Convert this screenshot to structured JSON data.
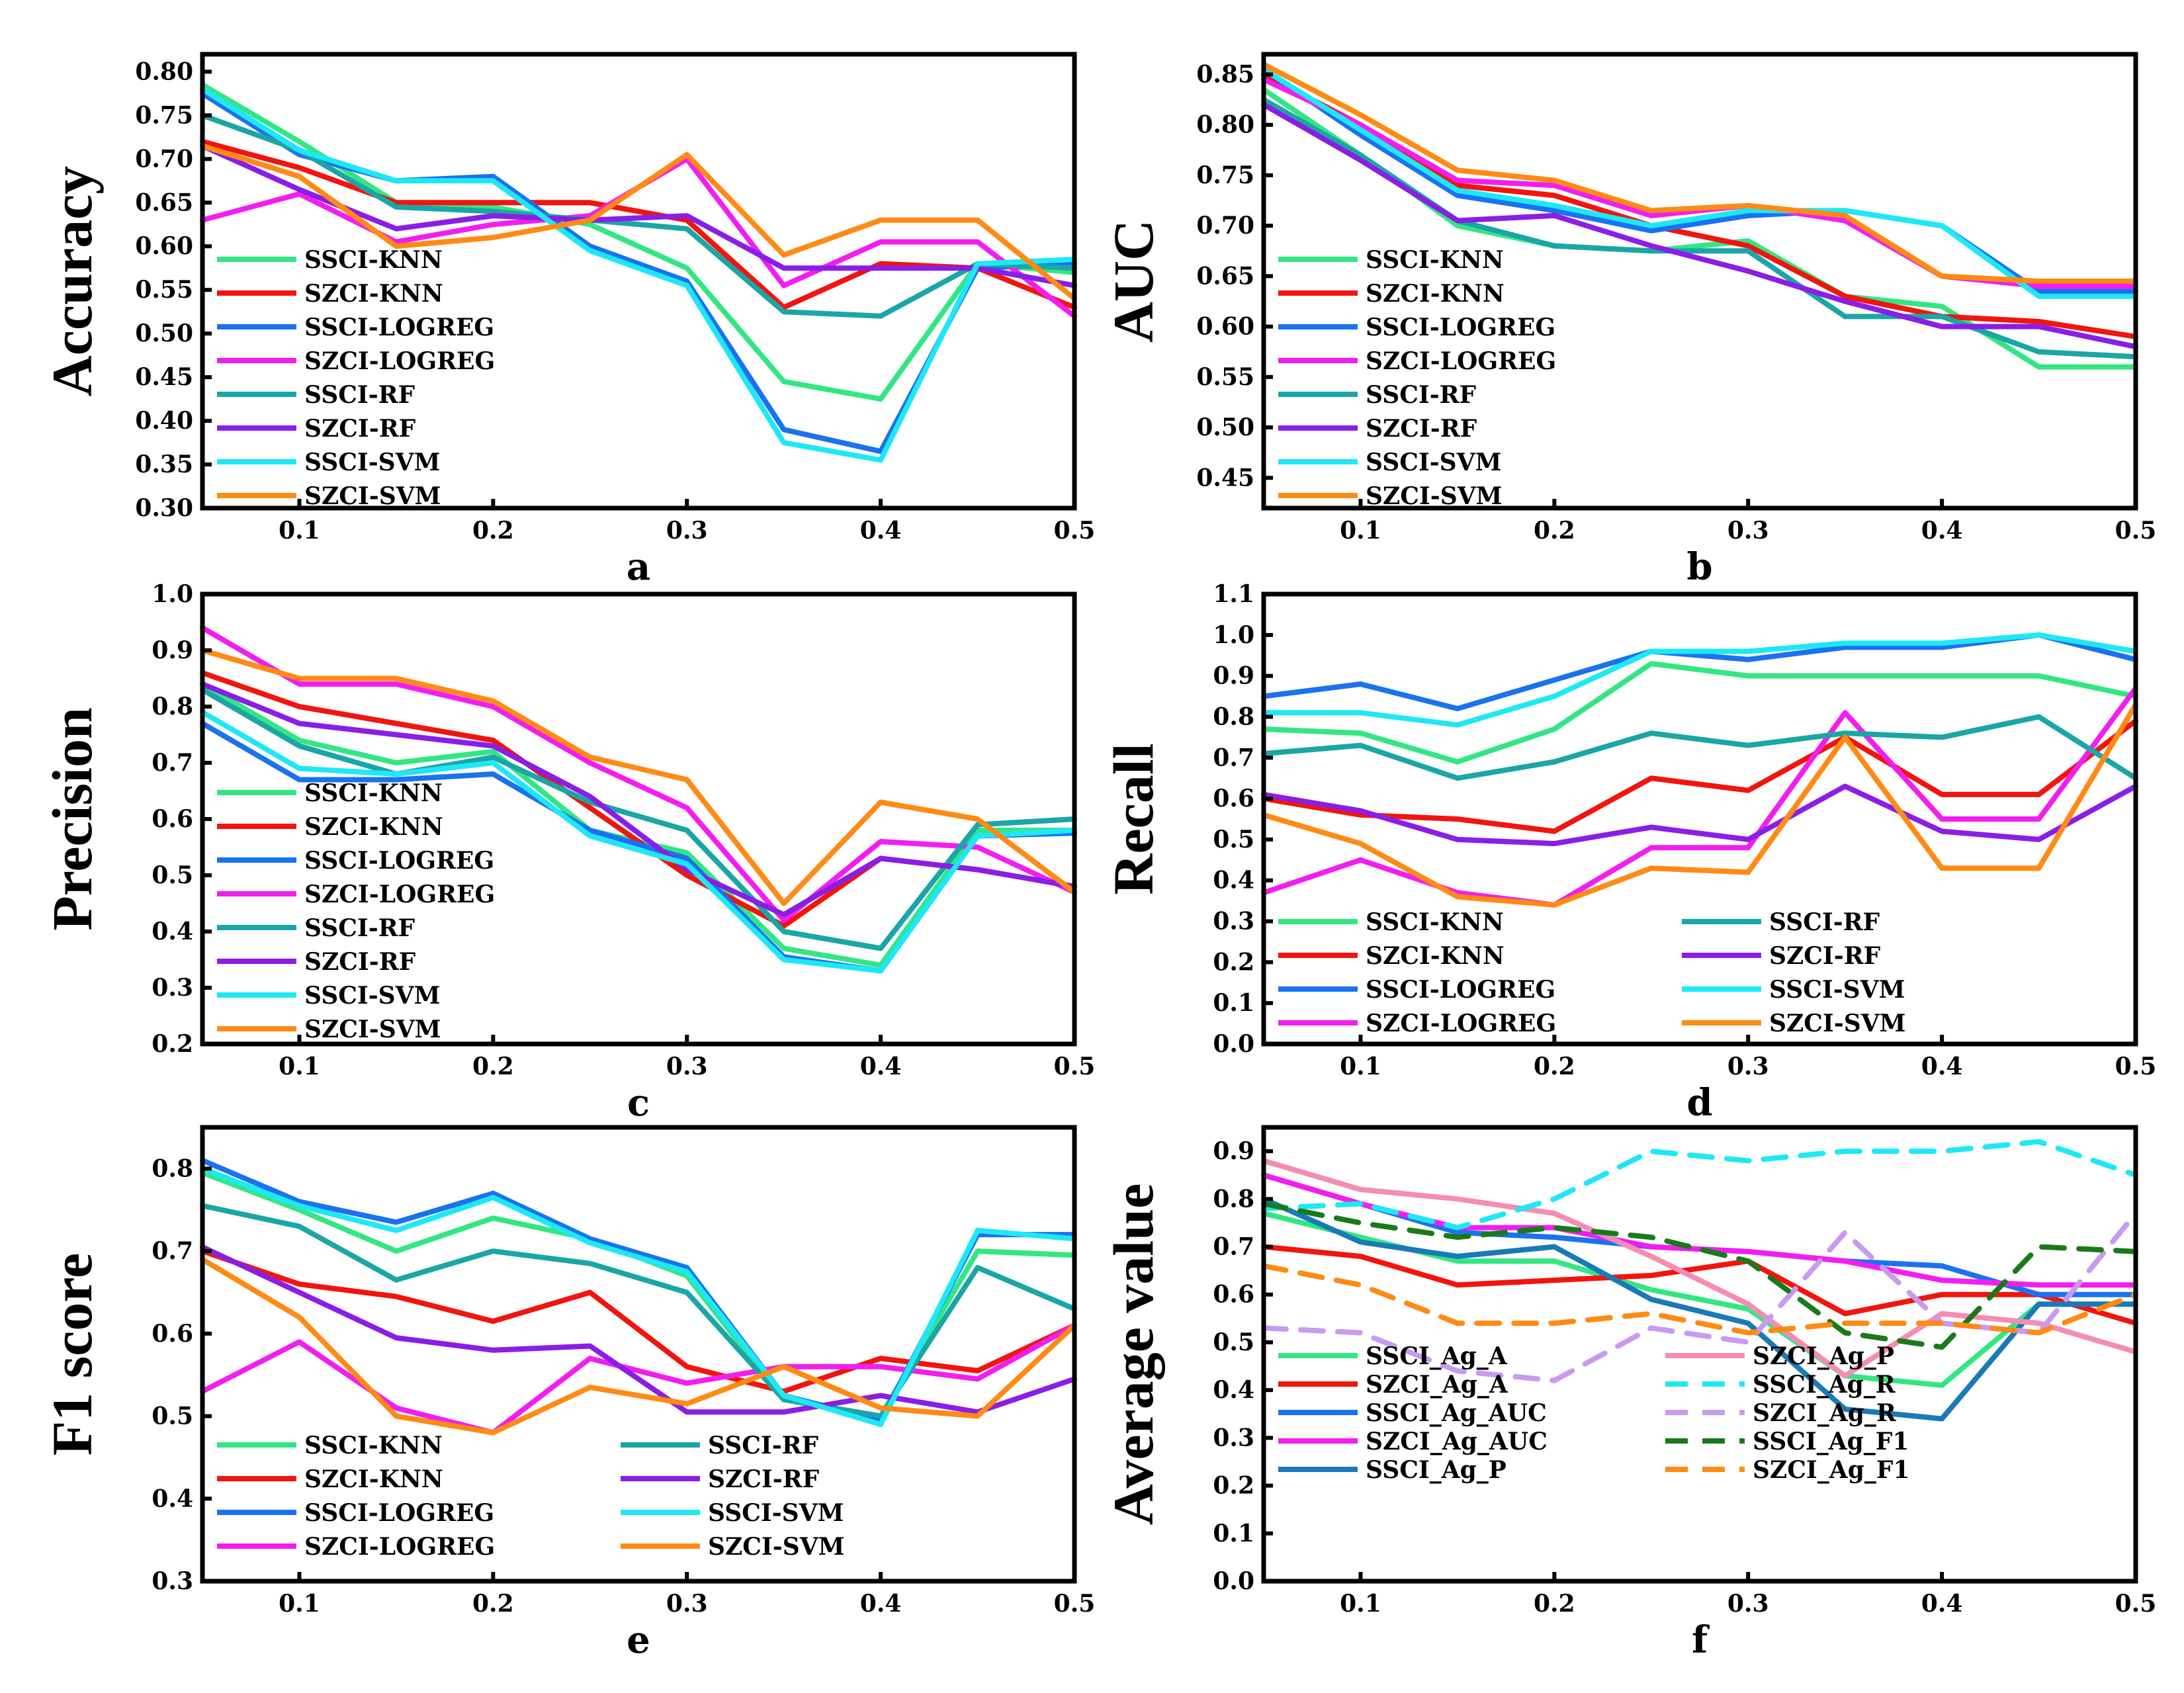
{
  "colors": {
    "SSCI-KNN": "#33e683",
    "SZCI-KNN": "#f2140f",
    "SSCI-LOGREG": "#1a72f0",
    "SZCI-LOGREG": "#f21ef0",
    "SSCI-RF": "#1aa6a6",
    "SZCI-RF": "#8a1ee6",
    "SSCI-SVM": "#1ee8f5",
    "SZCI-SVM": "#ff8a14",
    "SSCI_Ag_A": "#33e683",
    "SZCI_Ag_A": "#f2140f",
    "SSCI_Ag_AUC": "#1a72f0",
    "SZCI_Ag_AUC": "#f21ef0",
    "SSCI_Ag_P": "#1a7ab8",
    "SZCI_Ag_P": "#f58cb4",
    "SSCI_Ag_R": "#1ee8f5",
    "SZCI_Ag_R": "#c89af0",
    "SSCI_Ag_F1": "#1a7a1a",
    "SZCI_Ag_F1": "#ff8a14"
  },
  "chart_data": [
    {
      "type": "line",
      "panel_letter": "a",
      "ylabel": "Accuracy",
      "xlabel": "",
      "xlim": [
        0.05,
        0.5
      ],
      "ylim": [
        0.3,
        0.82
      ],
      "xticks": [
        0.1,
        0.2,
        0.3,
        0.4,
        0.5
      ],
      "xtick_labels": [
        "0.1",
        "0.2",
        "0.3",
        "0.4",
        "0.5"
      ],
      "yticks": [
        0.3,
        0.35,
        0.4,
        0.45,
        0.5,
        0.55,
        0.6,
        0.65,
        0.7,
        0.75,
        0.8
      ],
      "ytick_labels": [
        "0.30",
        "0.35",
        "0.40",
        "0.45",
        "0.50",
        "0.55",
        "0.60",
        "0.65",
        "0.70",
        "0.75",
        "0.80"
      ],
      "x": [
        0.05,
        0.1,
        0.15,
        0.2,
        0.25,
        0.3,
        0.35,
        0.4,
        0.45,
        0.5
      ],
      "legend_layout": "one-column",
      "series": [
        {
          "name": "SSCI-KNN",
          "values": [
            0.785,
            0.72,
            0.65,
            0.645,
            0.625,
            0.575,
            0.445,
            0.425,
            0.58,
            0.57
          ]
        },
        {
          "name": "SZCI-KNN",
          "values": [
            0.72,
            0.69,
            0.65,
            0.65,
            0.65,
            0.63,
            0.53,
            0.58,
            0.575,
            0.53
          ]
        },
        {
          "name": "SSCI-LOGREG",
          "values": [
            0.775,
            0.705,
            0.675,
            0.68,
            0.6,
            0.56,
            0.39,
            0.365,
            0.575,
            0.58
          ]
        },
        {
          "name": "SZCI-LOGREG",
          "values": [
            0.63,
            0.66,
            0.605,
            0.625,
            0.635,
            0.7,
            0.555,
            0.605,
            0.605,
            0.52
          ]
        },
        {
          "name": "SSCI-RF",
          "values": [
            0.75,
            0.71,
            0.645,
            0.64,
            0.63,
            0.62,
            0.525,
            0.52,
            0.58,
            0.575
          ]
        },
        {
          "name": "SZCI-RF",
          "values": [
            0.715,
            0.665,
            0.62,
            0.635,
            0.63,
            0.635,
            0.575,
            0.575,
            0.575,
            0.555
          ]
        },
        {
          "name": "SSCI-SVM",
          "values": [
            0.78,
            0.71,
            0.675,
            0.675,
            0.595,
            0.555,
            0.375,
            0.355,
            0.58,
            0.585
          ]
        },
        {
          "name": "SZCI-SVM",
          "values": [
            0.715,
            0.68,
            0.6,
            0.61,
            0.63,
            0.705,
            0.59,
            0.63,
            0.63,
            0.54
          ]
        }
      ]
    },
    {
      "type": "line",
      "panel_letter": "b",
      "ylabel": "AUC",
      "xlabel": "",
      "xlim": [
        0.05,
        0.5
      ],
      "ylim": [
        0.42,
        0.87
      ],
      "xticks": [
        0.1,
        0.2,
        0.3,
        0.4,
        0.5
      ],
      "xtick_labels": [
        "0.1",
        "0.2",
        "0.3",
        "0.4",
        "0.5"
      ],
      "yticks": [
        0.45,
        0.5,
        0.55,
        0.6,
        0.65,
        0.7,
        0.75,
        0.8,
        0.85
      ],
      "ytick_labels": [
        "0.45",
        "0.50",
        "0.55",
        "0.60",
        "0.65",
        "0.70",
        "0.75",
        "0.80",
        "0.85"
      ],
      "x": [
        0.05,
        0.1,
        0.15,
        0.2,
        0.25,
        0.3,
        0.35,
        0.4,
        0.45,
        0.5
      ],
      "legend_layout": "one-column",
      "series": [
        {
          "name": "SSCI-KNN",
          "values": [
            0.835,
            0.77,
            0.7,
            0.68,
            0.675,
            0.685,
            0.63,
            0.62,
            0.56,
            0.56
          ]
        },
        {
          "name": "SZCI-KNN",
          "values": [
            0.85,
            0.8,
            0.74,
            0.73,
            0.7,
            0.68,
            0.63,
            0.61,
            0.605,
            0.59
          ]
        },
        {
          "name": "SSCI-LOGREG",
          "values": [
            0.855,
            0.79,
            0.73,
            0.715,
            0.695,
            0.71,
            0.715,
            0.7,
            0.635,
            0.635
          ]
        },
        {
          "name": "SZCI-LOGREG",
          "values": [
            0.845,
            0.8,
            0.745,
            0.74,
            0.71,
            0.72,
            0.705,
            0.65,
            0.64,
            0.64
          ]
        },
        {
          "name": "SSCI-RF",
          "values": [
            0.825,
            0.77,
            0.705,
            0.68,
            0.675,
            0.675,
            0.61,
            0.61,
            0.575,
            0.57
          ]
        },
        {
          "name": "SZCI-RF",
          "values": [
            0.82,
            0.765,
            0.705,
            0.71,
            0.68,
            0.655,
            0.625,
            0.6,
            0.6,
            0.58
          ]
        },
        {
          "name": "SSCI-SVM",
          "values": [
            0.855,
            0.795,
            0.735,
            0.72,
            0.7,
            0.715,
            0.715,
            0.7,
            0.63,
            0.63
          ]
        },
        {
          "name": "SZCI-SVM",
          "values": [
            0.86,
            0.81,
            0.755,
            0.745,
            0.715,
            0.72,
            0.71,
            0.65,
            0.645,
            0.645
          ]
        }
      ]
    },
    {
      "type": "line",
      "panel_letter": "c",
      "ylabel": "Precision",
      "xlabel": "",
      "xlim": [
        0.05,
        0.5
      ],
      "ylim": [
        0.2,
        1.0
      ],
      "xticks": [
        0.1,
        0.2,
        0.3,
        0.4,
        0.5
      ],
      "xtick_labels": [
        "0.1",
        "0.2",
        "0.3",
        "0.4",
        "0.5"
      ],
      "yticks": [
        0.2,
        0.3,
        0.4,
        0.5,
        0.6,
        0.7,
        0.8,
        0.9,
        1.0
      ],
      "ytick_labels": [
        "0.2",
        "0.3",
        "0.4",
        "0.5",
        "0.6",
        "0.7",
        "0.8",
        "0.9",
        "1.0"
      ],
      "x": [
        0.05,
        0.1,
        0.15,
        0.2,
        0.25,
        0.3,
        0.35,
        0.4,
        0.45,
        0.5
      ],
      "legend_layout": "one-column",
      "series": [
        {
          "name": "SSCI-KNN",
          "values": [
            0.84,
            0.74,
            0.7,
            0.72,
            0.58,
            0.54,
            0.37,
            0.34,
            0.58,
            0.58
          ]
        },
        {
          "name": "SZCI-KNN",
          "values": [
            0.86,
            0.8,
            0.77,
            0.74,
            0.62,
            0.5,
            0.41,
            0.53,
            0.51,
            0.48
          ]
        },
        {
          "name": "SSCI-LOGREG",
          "values": [
            0.77,
            0.67,
            0.67,
            0.68,
            0.58,
            0.53,
            0.355,
            0.33,
            0.57,
            0.575
          ]
        },
        {
          "name": "SZCI-LOGREG",
          "values": [
            0.94,
            0.84,
            0.84,
            0.8,
            0.7,
            0.62,
            0.42,
            0.56,
            0.55,
            0.47
          ]
        },
        {
          "name": "SSCI-RF",
          "values": [
            0.83,
            0.73,
            0.68,
            0.71,
            0.63,
            0.58,
            0.4,
            0.37,
            0.59,
            0.6
          ]
        },
        {
          "name": "SZCI-RF",
          "values": [
            0.84,
            0.77,
            0.75,
            0.73,
            0.64,
            0.51,
            0.43,
            0.53,
            0.51,
            0.48
          ]
        },
        {
          "name": "SSCI-SVM",
          "values": [
            0.79,
            0.69,
            0.68,
            0.7,
            0.57,
            0.52,
            0.35,
            0.33,
            0.57,
            0.58
          ]
        },
        {
          "name": "SZCI-SVM",
          "values": [
            0.9,
            0.85,
            0.85,
            0.81,
            0.71,
            0.67,
            0.45,
            0.63,
            0.6,
            0.47
          ]
        }
      ]
    },
    {
      "type": "line",
      "panel_letter": "d",
      "ylabel": "Recall",
      "xlabel": "",
      "xlim": [
        0.05,
        0.5
      ],
      "ylim": [
        0.0,
        1.1
      ],
      "xticks": [
        0.1,
        0.2,
        0.3,
        0.4,
        0.5
      ],
      "xtick_labels": [
        "0.1",
        "0.2",
        "0.3",
        "0.4",
        "0.5"
      ],
      "yticks": [
        0.0,
        0.1,
        0.2,
        0.3,
        0.4,
        0.5,
        0.6,
        0.7,
        0.8,
        0.9,
        1.0,
        1.1
      ],
      "ytick_labels": [
        "0.0",
        "0.1",
        "0.2",
        "0.3",
        "0.4",
        "0.5",
        "0.6",
        "0.7",
        "0.8",
        "0.9",
        "1.0",
        "1.1"
      ],
      "x": [
        0.05,
        0.1,
        0.15,
        0.2,
        0.25,
        0.3,
        0.35,
        0.4,
        0.45,
        0.5
      ],
      "legend_layout": "two-column",
      "series": [
        {
          "name": "SSCI-KNN",
          "values": [
            0.77,
            0.76,
            0.69,
            0.77,
            0.93,
            0.9,
            0.9,
            0.9,
            0.9,
            0.85
          ]
        },
        {
          "name": "SZCI-KNN",
          "values": [
            0.6,
            0.56,
            0.55,
            0.52,
            0.65,
            0.62,
            0.75,
            0.61,
            0.61,
            0.79
          ]
        },
        {
          "name": "SSCI-LOGREG",
          "values": [
            0.85,
            0.88,
            0.82,
            0.89,
            0.96,
            0.94,
            0.97,
            0.97,
            1.0,
            0.94
          ]
        },
        {
          "name": "SZCI-LOGREG",
          "values": [
            0.37,
            0.45,
            0.37,
            0.34,
            0.48,
            0.48,
            0.81,
            0.55,
            0.55,
            0.87
          ]
        },
        {
          "name": "SSCI-RF",
          "values": [
            0.71,
            0.73,
            0.65,
            0.69,
            0.76,
            0.73,
            0.76,
            0.75,
            0.8,
            0.65
          ]
        },
        {
          "name": "SZCI-RF",
          "values": [
            0.61,
            0.57,
            0.5,
            0.49,
            0.53,
            0.5,
            0.63,
            0.52,
            0.5,
            0.63
          ]
        },
        {
          "name": "SSCI-SVM",
          "values": [
            0.81,
            0.81,
            0.78,
            0.85,
            0.96,
            0.96,
            0.98,
            0.98,
            1.0,
            0.96
          ]
        },
        {
          "name": "SZCI-SVM",
          "values": [
            0.56,
            0.49,
            0.36,
            0.34,
            0.43,
            0.42,
            0.75,
            0.43,
            0.43,
            0.83
          ]
        }
      ]
    },
    {
      "type": "line",
      "panel_letter": "e",
      "ylabel": "F1 score",
      "xlabel": "",
      "xlim": [
        0.05,
        0.5
      ],
      "ylim": [
        0.3,
        0.85
      ],
      "xticks": [
        0.1,
        0.2,
        0.3,
        0.4,
        0.5
      ],
      "xtick_labels": [
        "0.1",
        "0.2",
        "0.3",
        "0.4",
        "0.5"
      ],
      "yticks": [
        0.3,
        0.4,
        0.5,
        0.6,
        0.7,
        0.8
      ],
      "ytick_labels": [
        "0.3",
        "0.4",
        "0.5",
        "0.6",
        "0.7",
        "0.8"
      ],
      "x": [
        0.05,
        0.1,
        0.15,
        0.2,
        0.25,
        0.3,
        0.35,
        0.4,
        0.45,
        0.5
      ],
      "legend_layout": "two-column",
      "series": [
        {
          "name": "SSCI-KNN",
          "values": [
            0.795,
            0.75,
            0.7,
            0.74,
            0.715,
            0.67,
            0.52,
            0.5,
            0.7,
            0.695
          ]
        },
        {
          "name": "SZCI-KNN",
          "values": [
            0.7,
            0.66,
            0.645,
            0.615,
            0.65,
            0.56,
            0.53,
            0.57,
            0.555,
            0.61
          ]
        },
        {
          "name": "SSCI-LOGREG",
          "values": [
            0.81,
            0.76,
            0.735,
            0.77,
            0.715,
            0.68,
            0.525,
            0.495,
            0.72,
            0.72
          ]
        },
        {
          "name": "SZCI-LOGREG",
          "values": [
            0.53,
            0.59,
            0.51,
            0.48,
            0.57,
            0.54,
            0.56,
            0.56,
            0.545,
            0.61
          ]
        },
        {
          "name": "SSCI-RF",
          "values": [
            0.755,
            0.73,
            0.665,
            0.7,
            0.685,
            0.65,
            0.52,
            0.5,
            0.68,
            0.63
          ]
        },
        {
          "name": "SZCI-RF",
          "values": [
            0.705,
            0.65,
            0.595,
            0.58,
            0.585,
            0.505,
            0.505,
            0.525,
            0.505,
            0.545
          ]
        },
        {
          "name": "SSCI-SVM",
          "values": [
            0.8,
            0.755,
            0.725,
            0.765,
            0.71,
            0.675,
            0.525,
            0.49,
            0.725,
            0.715
          ]
        },
        {
          "name": "SZCI-SVM",
          "values": [
            0.69,
            0.62,
            0.5,
            0.48,
            0.535,
            0.515,
            0.56,
            0.51,
            0.5,
            0.61
          ]
        }
      ]
    },
    {
      "type": "line",
      "panel_letter": "f",
      "ylabel": "Average value",
      "xlabel": "",
      "xlim": [
        0.05,
        0.5
      ],
      "ylim": [
        0.0,
        0.95
      ],
      "xticks": [
        0.1,
        0.2,
        0.3,
        0.4,
        0.5
      ],
      "xtick_labels": [
        "0.1",
        "0.2",
        "0.3",
        "0.4",
        "0.5"
      ],
      "yticks": [
        0.0,
        0.1,
        0.2,
        0.3,
        0.4,
        0.5,
        0.6,
        0.7,
        0.8,
        0.9
      ],
      "ytick_labels": [
        "0.0",
        "0.1",
        "0.2",
        "0.3",
        "0.4",
        "0.5",
        "0.6",
        "0.7",
        "0.8",
        "0.9"
      ],
      "x": [
        0.05,
        0.1,
        0.15,
        0.2,
        0.25,
        0.3,
        0.35,
        0.4,
        0.45,
        0.5
      ],
      "legend_layout": "two-column",
      "series": [
        {
          "name": "SSCI_Ag_A",
          "dashed": false,
          "values": [
            0.77,
            0.72,
            0.67,
            0.67,
            0.61,
            0.57,
            0.43,
            0.41,
            0.58,
            0.58
          ]
        },
        {
          "name": "SZCI_Ag_A",
          "dashed": false,
          "values": [
            0.7,
            0.68,
            0.62,
            0.63,
            0.64,
            0.67,
            0.56,
            0.6,
            0.6,
            0.54
          ]
        },
        {
          "name": "SSCI_Ag_AUC",
          "dashed": false,
          "values": [
            0.85,
            0.79,
            0.73,
            0.72,
            0.7,
            0.69,
            0.67,
            0.66,
            0.6,
            0.6
          ]
        },
        {
          "name": "SZCI_Ag_AUC",
          "dashed": false,
          "values": [
            0.85,
            0.79,
            0.74,
            0.74,
            0.7,
            0.69,
            0.67,
            0.63,
            0.62,
            0.62
          ]
        },
        {
          "name": "SSCI_Ag_P",
          "dashed": false,
          "values": [
            0.8,
            0.71,
            0.68,
            0.7,
            0.59,
            0.54,
            0.36,
            0.34,
            0.58,
            0.58
          ]
        },
        {
          "name": "SZCI_Ag_P",
          "dashed": false,
          "values": [
            0.88,
            0.82,
            0.8,
            0.77,
            0.68,
            0.58,
            0.43,
            0.56,
            0.54,
            0.48
          ]
        },
        {
          "name": "SSCI_Ag_R",
          "dashed": true,
          "values": [
            0.78,
            0.79,
            0.74,
            0.8,
            0.9,
            0.88,
            0.9,
            0.9,
            0.92,
            0.85
          ]
        },
        {
          "name": "SZCI_Ag_R",
          "dashed": true,
          "values": [
            0.53,
            0.52,
            0.44,
            0.42,
            0.53,
            0.5,
            0.73,
            0.54,
            0.52,
            0.77
          ]
        },
        {
          "name": "SSCI_Ag_F1",
          "dashed": true,
          "values": [
            0.79,
            0.75,
            0.72,
            0.74,
            0.72,
            0.67,
            0.52,
            0.49,
            0.7,
            0.69
          ]
        },
        {
          "name": "SZCI_Ag_F1",
          "dashed": true,
          "values": [
            0.66,
            0.62,
            0.54,
            0.54,
            0.56,
            0.52,
            0.54,
            0.54,
            0.52,
            0.6
          ]
        }
      ]
    }
  ]
}
